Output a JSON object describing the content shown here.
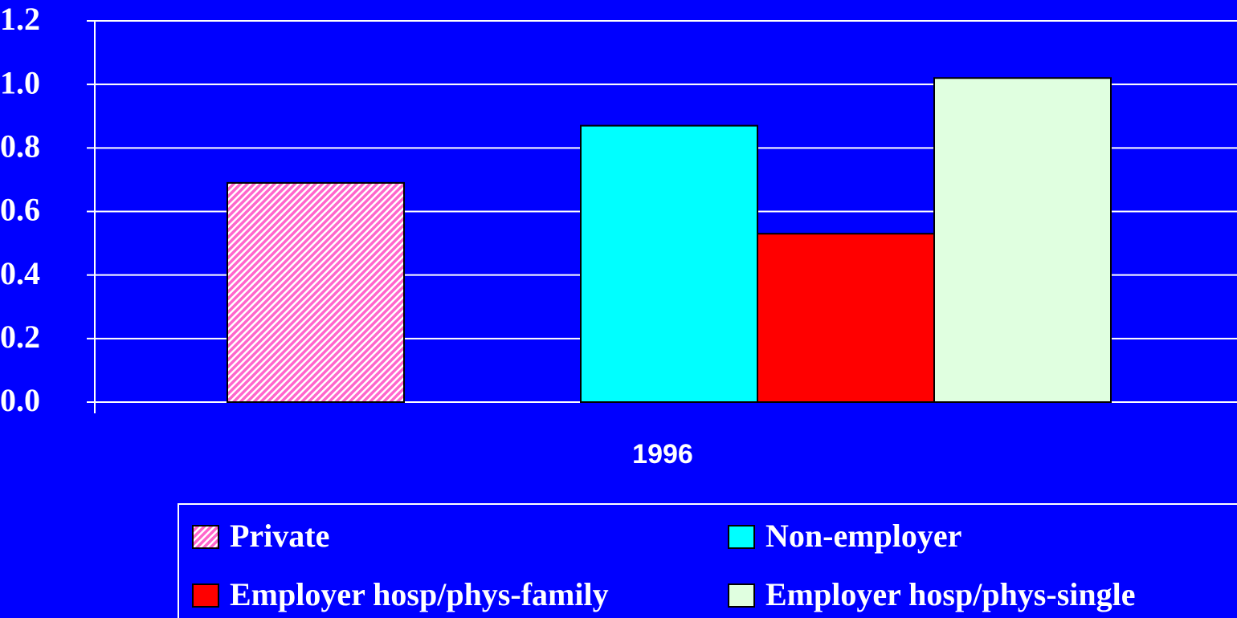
{
  "chart_data": {
    "type": "bar",
    "categories": [
      "1996"
    ],
    "series": [
      {
        "name": "Private",
        "color": "#ff66cc",
        "hatch": true,
        "values": [
          0.69
        ]
      },
      {
        "name": "Non-employer",
        "color": "#00ffff",
        "values": [
          0.87
        ]
      },
      {
        "name": "Employer hosp/phys-family",
        "color": "#ff0000",
        "values": [
          0.53
        ]
      },
      {
        "name": "Employer hosp/phys-single",
        "color": "#e0ffe0",
        "values": [
          1.02
        ]
      }
    ],
    "ylim": [
      0,
      1.2
    ],
    "yticks": [
      {
        "value": 0,
        "label": "0.0"
      },
      0.2,
      0.4,
      0.6,
      0.8,
      {
        "value": 1,
        "label": "1.0"
      },
      1.2
    ],
    "grid": true
  }
}
